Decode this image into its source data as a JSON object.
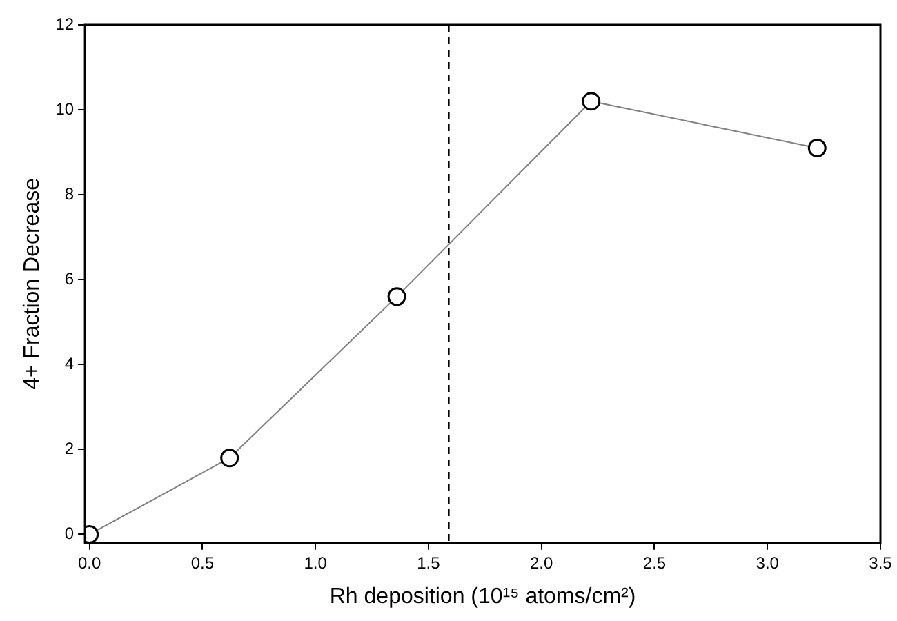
{
  "chart_data": {
    "type": "line",
    "xlabel": "Rh deposition (10¹⁵ atoms/cm²)",
    "ylabel": "4+ Fraction Decrease",
    "x": [
      0,
      0.62,
      1.36,
      2.22,
      3.22
    ],
    "series": [
      {
        "color": "#808080",
        "values": [
          0,
          1.8,
          5.6,
          10.2,
          9.1
        ]
      }
    ],
    "xlim": [
      -0.02,
      3.5
    ],
    "xticks": [
      {
        "value": 0,
        "label": "0.0"
      },
      {
        "value": 0.5,
        "label": "0.5"
      },
      {
        "value": 1,
        "label": "1.0"
      },
      {
        "value": 1.5,
        "label": "1.5"
      },
      {
        "value": 2,
        "label": "2.0"
      },
      {
        "value": 2.5,
        "label": "2.5"
      },
      {
        "value": 3,
        "label": "3.0"
      },
      {
        "value": 3.5,
        "label": "3.5"
      }
    ],
    "ylim": [
      -0.2,
      12
    ],
    "yticks": [
      0,
      2,
      4,
      6,
      8,
      10,
      12
    ],
    "ref_lines": [
      {
        "axis": "x",
        "value": 1.59,
        "color": "#000000",
        "line_style": "dashed"
      }
    ],
    "marker": "circle",
    "line_style": "solid",
    "grid": false,
    "legend": false
  }
}
